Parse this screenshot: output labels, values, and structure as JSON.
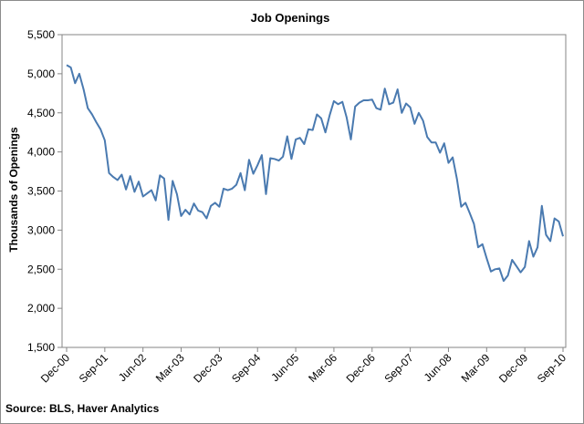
{
  "chart_data": {
    "type": "line",
    "title": "Job Openings",
    "ylabel": "Thousands of Openings",
    "xlabel": "",
    "ylim": [
      1500,
      5500
    ],
    "yticks": [
      1500,
      2000,
      2500,
      3000,
      3500,
      4000,
      4500,
      5000,
      5500
    ],
    "ytick_labels": [
      "1,500",
      "2,000",
      "2,500",
      "3,000",
      "3,500",
      "4,000",
      "4,500",
      "5,000",
      "5,500"
    ],
    "xtick_labels": [
      "Dec-00",
      "Sep-01",
      "Jun-02",
      "Mar-03",
      "Dec-03",
      "Sep-04",
      "Jun-05",
      "Mar-06",
      "Dec-06",
      "Sep-07",
      "Jun-08",
      "Mar-09",
      "Dec-09",
      "Sep-10"
    ],
    "grid": false,
    "line_color": "#4a7ab0",
    "series": [
      {
        "x": [
          "Dec-00",
          "Jan-01",
          "Feb-01",
          "Mar-01",
          "Apr-01",
          "May-01",
          "Jun-01",
          "Jul-01",
          "Aug-01",
          "Sep-01",
          "Oct-01",
          "Nov-01",
          "Dec-01",
          "Jan-02",
          "Feb-02",
          "Mar-02",
          "Apr-02",
          "May-02",
          "Jun-02",
          "Jul-02",
          "Aug-02",
          "Sep-02",
          "Oct-02",
          "Nov-02",
          "Dec-02",
          "Jan-03",
          "Feb-03",
          "Mar-03",
          "Apr-03",
          "May-03",
          "Jun-03",
          "Jul-03",
          "Aug-03",
          "Sep-03",
          "Oct-03",
          "Nov-03",
          "Dec-03",
          "Jan-04",
          "Feb-04",
          "Mar-04",
          "Apr-04",
          "May-04",
          "Jun-04",
          "Jul-04",
          "Aug-04",
          "Sep-04",
          "Oct-04",
          "Nov-04",
          "Dec-04",
          "Jan-05",
          "Feb-05",
          "Mar-05",
          "Apr-05",
          "May-05",
          "Jun-05",
          "Jul-05",
          "Aug-05",
          "Sep-05",
          "Oct-05",
          "Nov-05",
          "Dec-05",
          "Jan-06",
          "Feb-06",
          "Mar-06",
          "Apr-06",
          "May-06",
          "Jun-06",
          "Jul-06",
          "Aug-06",
          "Sep-06",
          "Oct-06",
          "Nov-06",
          "Dec-06",
          "Jan-07",
          "Feb-07",
          "Mar-07",
          "Apr-07",
          "May-07",
          "Jun-07",
          "Jul-07",
          "Aug-07",
          "Sep-07",
          "Oct-07",
          "Nov-07",
          "Dec-07",
          "Jan-08",
          "Feb-08",
          "Mar-08",
          "Apr-08",
          "May-08",
          "Jun-08",
          "Jul-08",
          "Aug-08",
          "Sep-08",
          "Oct-08",
          "Nov-08",
          "Dec-08",
          "Jan-09",
          "Feb-09",
          "Mar-09",
          "Apr-09",
          "May-09",
          "Jun-09",
          "Jul-09",
          "Aug-09",
          "Sep-09",
          "Oct-09",
          "Nov-09",
          "Dec-09",
          "Jan-10",
          "Feb-10",
          "Mar-10",
          "Apr-10",
          "May-10",
          "Jun-10",
          "Jul-10",
          "Aug-10",
          "Sep-10"
        ],
        "values": [
          5110,
          5080,
          4880,
          5000,
          4800,
          4560,
          4480,
          4380,
          4290,
          4150,
          3730,
          3680,
          3640,
          3710,
          3520,
          3690,
          3490,
          3620,
          3430,
          3470,
          3510,
          3380,
          3700,
          3660,
          3130,
          3630,
          3460,
          3180,
          3260,
          3200,
          3340,
          3250,
          3230,
          3150,
          3310,
          3350,
          3300,
          3530,
          3510,
          3530,
          3580,
          3730,
          3510,
          3900,
          3720,
          3830,
          3960,
          3460,
          3920,
          3910,
          3890,
          3940,
          4200,
          3910,
          4160,
          4180,
          4100,
          4290,
          4280,
          4480,
          4430,
          4250,
          4470,
          4650,
          4610,
          4640,
          4440,
          4160,
          4580,
          4630,
          4660,
          4660,
          4670,
          4560,
          4540,
          4810,
          4610,
          4630,
          4800,
          4500,
          4620,
          4570,
          4360,
          4500,
          4400,
          4190,
          4120,
          4120,
          3990,
          4110,
          3860,
          3930,
          3650,
          3300,
          3350,
          3220,
          3080,
          2780,
          2820,
          2640,
          2470,
          2500,
          2510,
          2350,
          2420,
          2620,
          2540,
          2460,
          2530,
          2860,
          2660,
          2780,
          3310,
          2940,
          2860,
          3150,
          3110,
          2920
        ]
      }
    ]
  },
  "footer": {
    "source": "Source:  BLS, Haver Analytics"
  }
}
